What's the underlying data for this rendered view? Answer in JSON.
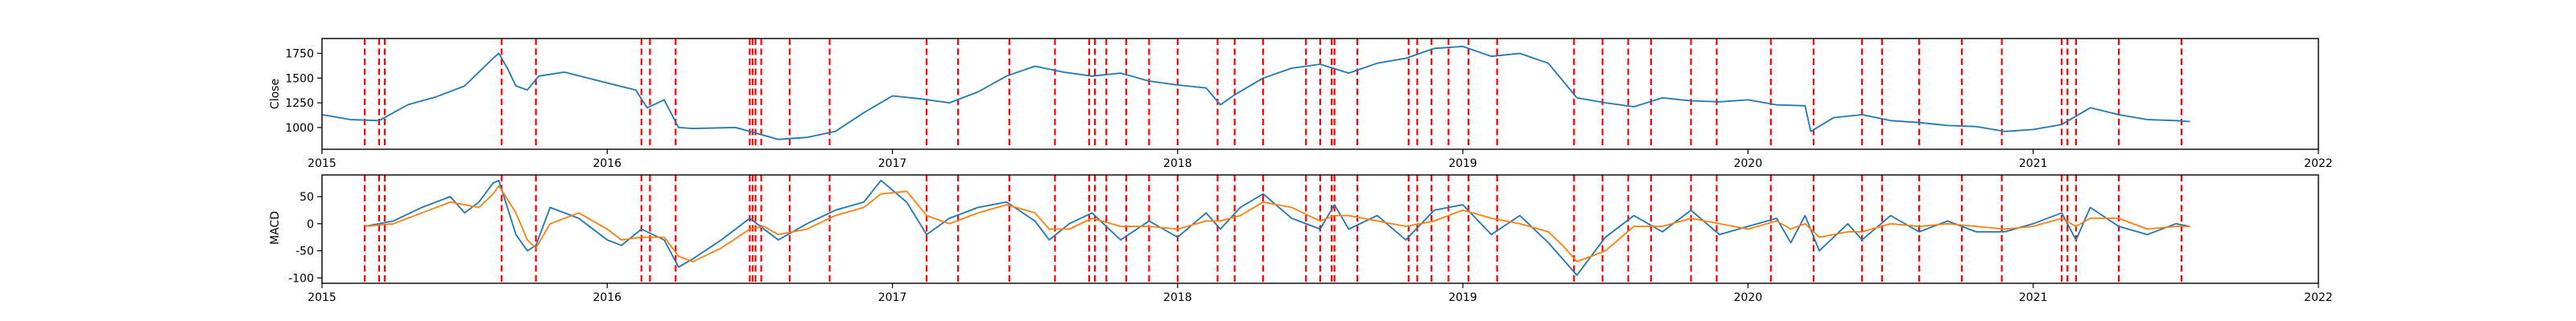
{
  "chart_data": [
    {
      "type": "line",
      "ylabel": "Close",
      "xlim": [
        2015.0,
        2022.0
      ],
      "ylim": [
        780,
        1900
      ],
      "x_ticks": [
        2015,
        2016,
        2017,
        2018,
        2019,
        2020,
        2021,
        2022
      ],
      "y_ticks": [
        1000,
        1250,
        1500,
        1750
      ],
      "series": [
        {
          "color": "#1f77b4",
          "x": [
            2015.0,
            2015.1,
            2015.2,
            2015.3,
            2015.4,
            2015.5,
            2015.6,
            2015.62,
            2015.65,
            2015.68,
            2015.72,
            2015.76,
            2015.85,
            2016.0,
            2016.1,
            2016.14,
            2016.2,
            2016.25,
            2016.3,
            2016.45,
            2016.5,
            2016.6,
            2016.7,
            2016.8,
            2016.9,
            2017.0,
            2017.1,
            2017.2,
            2017.3,
            2017.4,
            2017.5,
            2017.6,
            2017.7,
            2017.8,
            2017.9,
            2018.0,
            2018.1,
            2018.15,
            2018.2,
            2018.3,
            2018.4,
            2018.5,
            2018.6,
            2018.7,
            2018.8,
            2018.9,
            2019.0,
            2019.1,
            2019.2,
            2019.3,
            2019.4,
            2019.5,
            2019.6,
            2019.7,
            2019.8,
            2019.9,
            2020.0,
            2020.1,
            2020.2,
            2020.22,
            2020.3,
            2020.4,
            2020.5,
            2020.6,
            2020.7,
            2020.8,
            2020.9,
            2021.0,
            2021.1,
            2021.2,
            2021.3,
            2021.4,
            2021.5,
            2021.55
          ],
          "y": [
            1130,
            1080,
            1070,
            1230,
            1310,
            1420,
            1700,
            1750,
            1600,
            1420,
            1380,
            1520,
            1560,
            1450,
            1380,
            1200,
            1280,
            1000,
            990,
            1000,
            960,
            880,
            900,
            960,
            1150,
            1320,
            1290,
            1250,
            1360,
            1520,
            1620,
            1560,
            1520,
            1550,
            1470,
            1430,
            1400,
            1230,
            1330,
            1500,
            1600,
            1640,
            1550,
            1650,
            1700,
            1800,
            1820,
            1720,
            1750,
            1650,
            1300,
            1250,
            1210,
            1300,
            1270,
            1260,
            1280,
            1230,
            1220,
            960,
            1100,
            1130,
            1070,
            1050,
            1020,
            1010,
            960,
            980,
            1030,
            1200,
            1130,
            1080,
            1070,
            1060
          ]
        }
      ],
      "vlines": [
        2015.15,
        2015.2,
        2015.22,
        2015.63,
        2015.75,
        2016.12,
        2016.15,
        2016.24,
        2016.5,
        2016.51,
        2016.52,
        2016.54,
        2016.64,
        2016.78,
        2017.12,
        2017.23,
        2017.41,
        2017.57,
        2017.69,
        2017.71,
        2017.75,
        2017.82,
        2017.9,
        2018.0,
        2018.14,
        2018.2,
        2018.3,
        2018.45,
        2018.5,
        2018.54,
        2018.55,
        2018.63,
        2018.81,
        2018.84,
        2018.89,
        2018.95,
        2019.02,
        2019.12,
        2019.39,
        2019.49,
        2019.58,
        2019.66,
        2019.8,
        2019.89,
        2020.08,
        2020.23,
        2020.4,
        2020.47,
        2020.6,
        2020.75,
        2020.89,
        2021.1,
        2021.12,
        2021.15,
        2021.3,
        2021.52
      ]
    },
    {
      "type": "line",
      "ylabel": "MACD",
      "xlim": [
        2015.0,
        2022.0
      ],
      "ylim": [
        -110,
        90
      ],
      "x_ticks": [
        2015,
        2016,
        2017,
        2018,
        2019,
        2020,
        2021,
        2022
      ],
      "y_ticks": [
        -100,
        -50,
        0,
        50
      ],
      "series": [
        {
          "color": "#1f77b4",
          "x": [
            2015.15,
            2015.25,
            2015.35,
            2015.45,
            2015.5,
            2015.55,
            2015.6,
            2015.62,
            2015.68,
            2015.72,
            2015.75,
            2015.8,
            2015.9,
            2016.0,
            2016.05,
            2016.12,
            2016.2,
            2016.25,
            2016.3,
            2016.4,
            2016.5,
            2016.55,
            2016.6,
            2016.7,
            2016.8,
            2016.9,
            2016.96,
            2017.05,
            2017.12,
            2017.2,
            2017.3,
            2017.4,
            2017.5,
            2017.55,
            2017.62,
            2017.7,
            2017.8,
            2017.9,
            2018.0,
            2018.1,
            2018.15,
            2018.22,
            2018.3,
            2018.4,
            2018.5,
            2018.55,
            2018.6,
            2018.7,
            2018.8,
            2018.9,
            2019.0,
            2019.1,
            2019.2,
            2019.3,
            2019.35,
            2019.4,
            2019.5,
            2019.6,
            2019.7,
            2019.8,
            2019.9,
            2020.0,
            2020.1,
            2020.15,
            2020.2,
            2020.25,
            2020.35,
            2020.4,
            2020.5,
            2020.6,
            2020.7,
            2020.8,
            2020.9,
            2021.0,
            2021.1,
            2021.15,
            2021.2,
            2021.3,
            2021.4,
            2021.5,
            2021.55
          ],
          "y": [
            -5,
            5,
            30,
            50,
            20,
            40,
            75,
            80,
            -20,
            -50,
            -40,
            30,
            10,
            -30,
            -40,
            -10,
            -30,
            -80,
            -65,
            -30,
            10,
            -10,
            -30,
            0,
            25,
            40,
            80,
            40,
            -20,
            10,
            30,
            40,
            5,
            -30,
            0,
            20,
            -30,
            5,
            -25,
            20,
            -10,
            30,
            55,
            10,
            -10,
            35,
            -10,
            15,
            -30,
            25,
            35,
            -20,
            15,
            -35,
            -65,
            -95,
            -25,
            15,
            -15,
            25,
            -20,
            -5,
            10,
            -35,
            15,
            -50,
            0,
            -30,
            15,
            -15,
            5,
            -15,
            -15,
            0,
            20,
            -30,
            30,
            -5,
            -20,
            0,
            -5
          ],
          "width": 1.8
        },
        {
          "color": "#ff7f0e",
          "x": [
            2015.15,
            2015.25,
            2015.35,
            2015.45,
            2015.5,
            2015.55,
            2015.6,
            2015.62,
            2015.68,
            2015.72,
            2015.75,
            2015.8,
            2015.9,
            2016.0,
            2016.05,
            2016.12,
            2016.2,
            2016.25,
            2016.3,
            2016.4,
            2016.5,
            2016.55,
            2016.6,
            2016.7,
            2016.8,
            2016.9,
            2016.96,
            2017.05,
            2017.12,
            2017.2,
            2017.3,
            2017.4,
            2017.5,
            2017.55,
            2017.62,
            2017.7,
            2017.8,
            2017.9,
            2018.0,
            2018.1,
            2018.15,
            2018.22,
            2018.3,
            2018.4,
            2018.5,
            2018.55,
            2018.6,
            2018.7,
            2018.8,
            2018.9,
            2019.0,
            2019.1,
            2019.2,
            2019.3,
            2019.35,
            2019.4,
            2019.5,
            2019.6,
            2019.7,
            2019.8,
            2019.9,
            2020.0,
            2020.1,
            2020.15,
            2020.2,
            2020.25,
            2020.35,
            2020.4,
            2020.5,
            2020.6,
            2020.7,
            2020.8,
            2020.9,
            2021.0,
            2021.1,
            2021.15,
            2021.2,
            2021.3,
            2021.4,
            2021.5,
            2021.55
          ],
          "y": [
            -5,
            0,
            20,
            40,
            35,
            30,
            55,
            70,
            20,
            -30,
            -45,
            0,
            20,
            -10,
            -30,
            -25,
            -25,
            -60,
            -70,
            -45,
            -10,
            -5,
            -20,
            -10,
            15,
            30,
            55,
            60,
            15,
            0,
            20,
            35,
            20,
            -10,
            -10,
            10,
            -5,
            -5,
            -10,
            5,
            5,
            15,
            40,
            30,
            5,
            15,
            15,
            5,
            -5,
            5,
            25,
            10,
            0,
            -15,
            -40,
            -70,
            -50,
            -5,
            -5,
            10,
            0,
            -10,
            5,
            -10,
            0,
            -25,
            -15,
            -15,
            0,
            -5,
            0,
            -5,
            -10,
            -5,
            10,
            -5,
            10,
            10,
            -10,
            -5,
            -5
          ],
          "width": 1.8
        }
      ],
      "vlines": [
        2015.15,
        2015.2,
        2015.22,
        2015.63,
        2015.75,
        2016.12,
        2016.15,
        2016.24,
        2016.5,
        2016.51,
        2016.52,
        2016.54,
        2016.64,
        2016.78,
        2017.12,
        2017.23,
        2017.41,
        2017.57,
        2017.69,
        2017.71,
        2017.75,
        2017.82,
        2017.9,
        2018.0,
        2018.14,
        2018.2,
        2018.3,
        2018.45,
        2018.5,
        2018.54,
        2018.55,
        2018.63,
        2018.81,
        2018.84,
        2018.89,
        2018.95,
        2019.02,
        2019.12,
        2019.39,
        2019.49,
        2019.58,
        2019.66,
        2019.8,
        2019.89,
        2020.08,
        2020.23,
        2020.4,
        2020.47,
        2020.6,
        2020.75,
        2020.89,
        2021.1,
        2021.12,
        2021.15,
        2021.3,
        2021.52
      ]
    }
  ]
}
